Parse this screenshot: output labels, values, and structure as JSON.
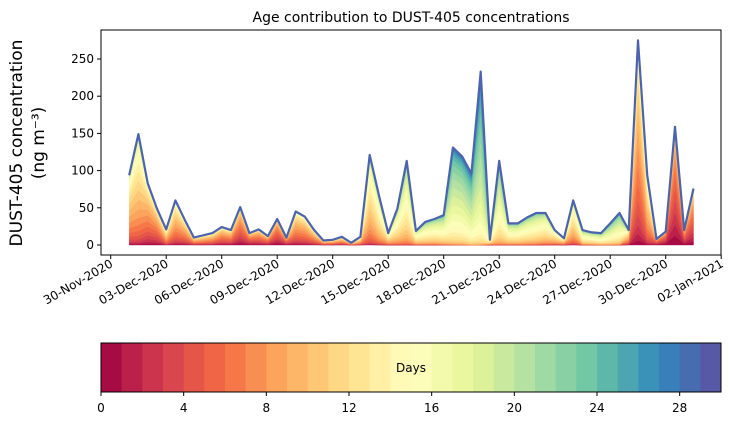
{
  "chart_data": {
    "type": "area",
    "stacked": true,
    "title": "Age contribution to DUST-405 concentrations",
    "ylabel_line1": "DUST-405 concentration",
    "ylabel_line2": "(ng m⁻³)",
    "ylim": [
      -14,
      290
    ],
    "yticks": [
      "0",
      "50",
      "100",
      "150",
      "200",
      "250"
    ],
    "ytick_values": [
      0,
      50,
      100,
      150,
      200,
      250
    ],
    "xlim_days_from_30nov": [
      -0.5,
      33
    ],
    "xtick_labels": [
      "30-Nov-2020",
      "03-Dec-2020",
      "06-Dec-2020",
      "09-Dec-2020",
      "12-Dec-2020",
      "15-Dec-2020",
      "18-Dec-2020",
      "21-Dec-2020",
      "24-Dec-2020",
      "27-Dec-2020",
      "30-Dec-2020",
      "02-Jan-2021"
    ],
    "xtick_days_from_30nov": [
      0,
      3,
      6,
      9,
      12,
      15,
      18,
      21,
      24,
      27,
      30,
      33
    ],
    "time_start_days_from_30nov": 1,
    "time_step_days": 0.5,
    "total_concentration": [
      94,
      149,
      83,
      49,
      21,
      60,
      34,
      10,
      13,
      16,
      24,
      20,
      51,
      16,
      21,
      12,
      35,
      10,
      45,
      38,
      20,
      6,
      7,
      11,
      3,
      11,
      121,
      67,
      16,
      49,
      113,
      19,
      31,
      35,
      40,
      131,
      119,
      96,
      233,
      7,
      113,
      29,
      29,
      37,
      43,
      43,
      20,
      9,
      60,
      20,
      17,
      16,
      29,
      43,
      20,
      275,
      94,
      8,
      18,
      159,
      20,
      76
    ],
    "dominant_age_days": [
      10,
      11,
      8,
      7,
      10,
      9,
      8,
      8,
      8,
      8,
      7,
      7,
      6,
      5,
      6,
      6,
      5,
      5,
      8,
      8,
      8,
      8,
      8,
      8,
      9,
      10,
      12,
      13,
      12,
      14,
      15,
      14,
      15,
      15,
      16,
      19,
      19,
      20,
      21,
      12,
      17,
      15,
      15,
      15,
      15,
      14,
      12,
      11,
      12,
      15,
      15,
      16,
      17,
      17,
      9,
      8,
      10,
      4,
      3,
      4,
      4,
      5
    ],
    "age_spread_days": 4.5,
    "colorbar": {
      "label": "Days",
      "colormap": "Spectral",
      "bins": 30,
      "range": [
        0,
        30
      ],
      "ticks": [
        "0",
        "4",
        "8",
        "12",
        "16",
        "20",
        "24",
        "28"
      ],
      "tick_values": [
        0,
        4,
        8,
        12,
        16,
        20,
        24,
        28
      ]
    },
    "outline_color": "#4c64ad"
  }
}
